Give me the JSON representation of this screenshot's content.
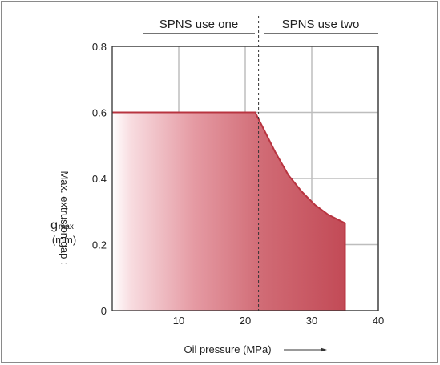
{
  "chart_data": {
    "type": "area",
    "x": [
      0,
      21.5,
      22.5,
      23.5,
      24.5,
      25.5,
      26.5,
      27.5,
      28.5,
      29.5,
      30.5,
      31.5,
      32.5,
      33.5,
      35
    ],
    "values": [
      0.6,
      0.6,
      0.56,
      0.52,
      0.48,
      0.445,
      0.41,
      0.385,
      0.36,
      0.34,
      0.32,
      0.305,
      0.29,
      0.28,
      0.265
    ],
    "x_ticks": [
      "10",
      "20",
      "30",
      "40"
    ],
    "y_ticks": [
      "0",
      "0.2",
      "0.4",
      "0.6",
      "0.8"
    ],
    "xlim": [
      0,
      40
    ],
    "ylim": [
      0,
      0.8
    ],
    "xlabel": "Oil pressure (MPa)",
    "ylabel_line1": "Max. extrusion gap :",
    "ylabel_symbol": "g",
    "ylabel_subscript": "max",
    "ylabel_unit": "(mm)",
    "grid": true,
    "region_divider_x": 22,
    "regions": [
      {
        "label": "SPNS use one"
      },
      {
        "label": "SPNS use two"
      }
    ],
    "fill_color": "#c0404a",
    "edge_color": "#b83440",
    "grid_color": "#bdbdbd"
  }
}
